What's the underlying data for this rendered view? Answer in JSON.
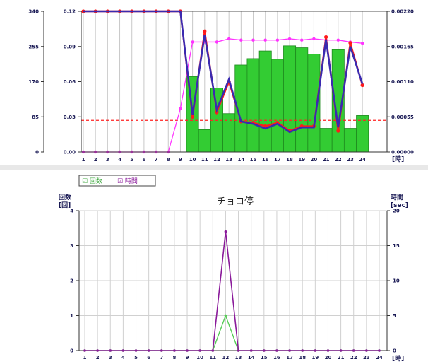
{
  "chart_data": [
    {
      "type": "bar",
      "categories": [
        "1",
        "2",
        "3",
        "4",
        "5",
        "6",
        "7",
        "8",
        "9",
        "10",
        "11",
        "12",
        "13",
        "14",
        "15",
        "16",
        "17",
        "18",
        "19",
        "20",
        "21",
        "22",
        "23",
        "24"
      ],
      "x_unit_label": "[時]",
      "axes": {
        "left_outer": {
          "ylim": [
            0,
            340
          ],
          "ticks": [
            "0",
            "85",
            "170",
            "255",
            "340"
          ]
        },
        "left_inner": {
          "ylim": [
            0,
            0.12
          ],
          "ticks": [
            "0.00",
            "0.03",
            "0.06",
            "0.09",
            "0.12"
          ]
        },
        "right": {
          "ylim": [
            0,
            0.0022
          ],
          "ticks": [
            "0.00000",
            "0.00055",
            "0.00110",
            "0.00165",
            "0.00220"
          ]
        }
      },
      "reference_line_value": 0.027,
      "series": [
        {
          "kind": "bar",
          "color": "#33cc33",
          "axis": "right",
          "values": [
            0,
            0,
            0,
            0,
            0,
            0,
            0,
            0,
            0,
            0.00118,
            0.00035,
            0.001,
            0.0006,
            0.00136,
            0.00146,
            0.00158,
            0.00145,
            0.00166,
            0.00163,
            0.00153,
            0.00037,
            0.0016,
            0.00037,
            0.00057
          ]
        },
        {
          "kind": "line",
          "color": "#ff33ff",
          "axis": "right",
          "values": [
            0,
            0,
            0,
            0,
            0,
            0,
            0,
            0,
            0.00068,
            0.00172,
            0.00172,
            0.00172,
            0.00177,
            0.00175,
            0.00175,
            0.00175,
            0.00175,
            0.00177,
            0.00175,
            0.00177,
            0.00175,
            0.00175,
            0.00172,
            0.0017
          ]
        },
        {
          "kind": "line",
          "color": "#ff1a1a",
          "axis": "left_inner",
          "values": [
            0.12,
            0.12,
            0.12,
            0.12,
            0.12,
            0.12,
            0.12,
            0.12,
            0.12,
            0.03,
            0.103,
            0.034,
            0.06,
            0.026,
            0.025,
            0.022,
            0.025,
            0.018,
            0.022,
            0.022,
            0.098,
            0.018,
            0.093,
            0.057
          ]
        },
        {
          "kind": "line",
          "color": "#3a2ab0",
          "axis": "left_inner",
          "values": [
            0.12,
            0.12,
            0.12,
            0.12,
            0.12,
            0.12,
            0.12,
            0.12,
            0.12,
            0.032,
            0.1,
            0.036,
            0.062,
            0.026,
            0.024,
            0.02,
            0.024,
            0.017,
            0.021,
            0.021,
            0.096,
            0.021,
            0.09,
            0.058
          ]
        }
      ]
    },
    {
      "type": "line",
      "title": "チョコ停",
      "categories": [
        "1",
        "2",
        "3",
        "4",
        "5",
        "6",
        "7",
        "8",
        "9",
        "10",
        "11",
        "12",
        "13",
        "14",
        "15",
        "16",
        "17",
        "18",
        "19",
        "20",
        "21",
        "22",
        "23",
        "24"
      ],
      "x_unit_label": "[時]",
      "left_axis": {
        "label": "回数",
        "unit": "[回]",
        "ylim": [
          0,
          4
        ],
        "ticks": [
          "0",
          "1",
          "2",
          "3",
          "4"
        ]
      },
      "right_axis": {
        "label": "時間",
        "unit": "[sec]",
        "ylim": [
          0,
          20
        ],
        "ticks": [
          "0",
          "5",
          "10",
          "15",
          "20"
        ]
      },
      "legend": [
        "☑ 回数",
        "☑ 時間"
      ],
      "legend_position": "top-left",
      "series": [
        {
          "name": "回数",
          "color": "#55cc55",
          "axis": "left",
          "values": [
            0,
            0,
            0,
            0,
            0,
            0,
            0,
            0,
            0,
            0,
            0,
            1,
            0,
            0,
            0,
            0,
            0,
            0,
            0,
            0,
            0,
            0,
            0,
            0
          ]
        },
        {
          "name": "時間",
          "color": "#8a1a9a",
          "axis": "right",
          "values": [
            0,
            0,
            0,
            0,
            0,
            0,
            0,
            0,
            0,
            0,
            0,
            17,
            0,
            0,
            0,
            0,
            0,
            0,
            0,
            0,
            0,
            0,
            0,
            0
          ]
        }
      ]
    }
  ]
}
